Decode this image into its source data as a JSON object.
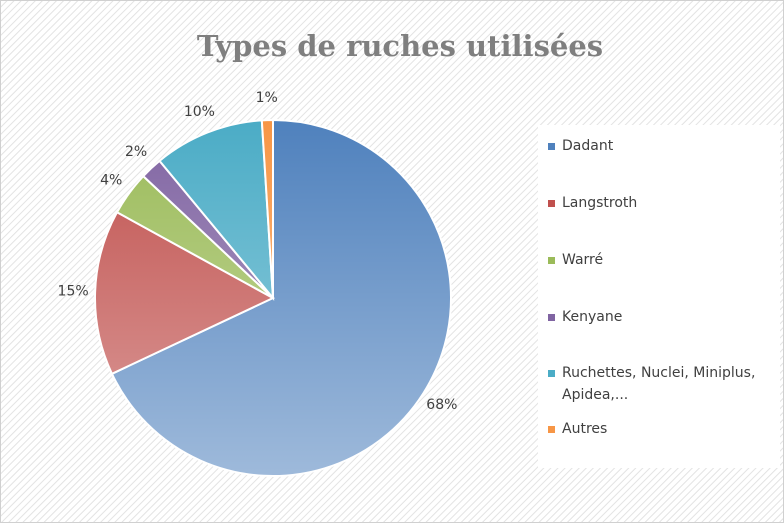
{
  "chart_data": {
    "type": "pie",
    "title": "Types de ruches utilisées",
    "categories": [
      "Dadant",
      "Langstroth",
      "Warré",
      "Kenyane",
      "Ruchettes, Nuclei, Miniplus, Apidea,...",
      "Autres"
    ],
    "values": [
      68,
      15,
      4,
      2,
      10,
      1
    ],
    "value_labels": [
      "68%",
      "15%",
      "4%",
      "2%",
      "10%",
      "1%"
    ],
    "colors": [
      "#4f81bd",
      "#c0504d",
      "#9bbb59",
      "#8064a2",
      "#4bacc6",
      "#f79646"
    ],
    "legend": "right"
  }
}
